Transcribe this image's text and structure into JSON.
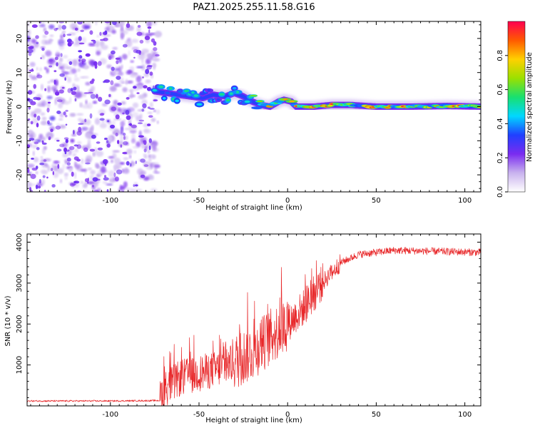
{
  "title": "PAZ1.2025.255.11.58.G16",
  "chart_data": [
    {
      "type": "heatmap",
      "xlabel": "Height of straight line (km)",
      "ylabel": "Frequency (Hz)",
      "xlim": [
        -147,
        109
      ],
      "ylim": [
        -25,
        25
      ],
      "xticks": [
        -100,
        -50,
        0,
        50,
        100
      ],
      "yticks": [
        -20,
        -10,
        0,
        10,
        20
      ],
      "xtick_labels": [
        "-100",
        "-50",
        "0",
        "50",
        "100"
      ],
      "ytick_labels": [
        "-20",
        "-10",
        "0",
        "10",
        "20"
      ],
      "colorbar": {
        "label": "Normalized spectral amplitude",
        "range": [
          0.0,
          1.0
        ],
        "ticks": [
          0.0,
          0.2,
          0.4,
          0.6,
          0.8
        ],
        "tick_labels": [
          "0.0",
          "0.2",
          "0.4",
          "0.6",
          "0.8"
        ],
        "colormap": [
          "#ffffff",
          "#c9b3ee",
          "#7a2cf0",
          "#2040ff",
          "#00d8ff",
          "#18e070",
          "#9be000",
          "#ffd000",
          "#ff5a00",
          "#ff0050"
        ]
      },
      "noise_region": {
        "x": [
          -147,
          -73
        ],
        "y": [
          -25,
          25
        ],
        "level": 0.15
      },
      "ridge": [
        {
          "x": -75,
          "y": 4.5
        },
        {
          "x": -68,
          "y": 4
        },
        {
          "x": -62,
          "y": 3.5
        },
        {
          "x": -55,
          "y": 3
        },
        {
          "x": -48,
          "y": 2.5
        },
        {
          "x": -42,
          "y": 3.5
        },
        {
          "x": -35,
          "y": 3
        },
        {
          "x": -30,
          "y": 4
        },
        {
          "x": -25,
          "y": 3
        },
        {
          "x": -20,
          "y": 1.5
        },
        {
          "x": -15,
          "y": 0.5
        },
        {
          "x": -10,
          "y": 0
        },
        {
          "x": -5,
          "y": 1.5
        },
        {
          "x": -2,
          "y": 2
        },
        {
          "x": 2,
          "y": 1.5
        },
        {
          "x": 5,
          "y": 0
        },
        {
          "x": 15,
          "y": 0
        },
        {
          "x": 25,
          "y": 0.5
        },
        {
          "x": 35,
          "y": 0.5
        },
        {
          "x": 50,
          "y": 0
        },
        {
          "x": 70,
          "y": 0
        },
        {
          "x": 90,
          "y": 0.2
        },
        {
          "x": 109,
          "y": 0
        }
      ]
    },
    {
      "type": "line",
      "xlabel": "Height of straight line (km)",
      "ylabel": "SNR (10 * v/v)",
      "xlim": [
        -147,
        109
      ],
      "ylim": [
        0,
        4200
      ],
      "xticks": [
        -100,
        -50,
        0,
        50,
        100
      ],
      "yticks": [
        1000,
        2000,
        3000,
        4000
      ],
      "xtick_labels": [
        "-100",
        "-50",
        "0",
        "50",
        "100"
      ],
      "ytick_labels": [
        "1000",
        "2000",
        "3000",
        "4000"
      ],
      "color": "#e8282a",
      "trend": [
        {
          "x": -147,
          "y": 120
        },
        {
          "x": -100,
          "y": 120
        },
        {
          "x": -72,
          "y": 130
        },
        {
          "x": -70,
          "y": 350
        },
        {
          "x": -60,
          "y": 650
        },
        {
          "x": -50,
          "y": 750
        },
        {
          "x": -40,
          "y": 850
        },
        {
          "x": -30,
          "y": 1000
        },
        {
          "x": -20,
          "y": 1250
        },
        {
          "x": -10,
          "y": 1600
        },
        {
          "x": 0,
          "y": 1950
        },
        {
          "x": 10,
          "y": 2400
        },
        {
          "x": 20,
          "y": 3000
        },
        {
          "x": 30,
          "y": 3500
        },
        {
          "x": 40,
          "y": 3700
        },
        {
          "x": 50,
          "y": 3750
        },
        {
          "x": 60,
          "y": 3800
        },
        {
          "x": 80,
          "y": 3780
        },
        {
          "x": 109,
          "y": 3750
        }
      ]
    }
  ]
}
